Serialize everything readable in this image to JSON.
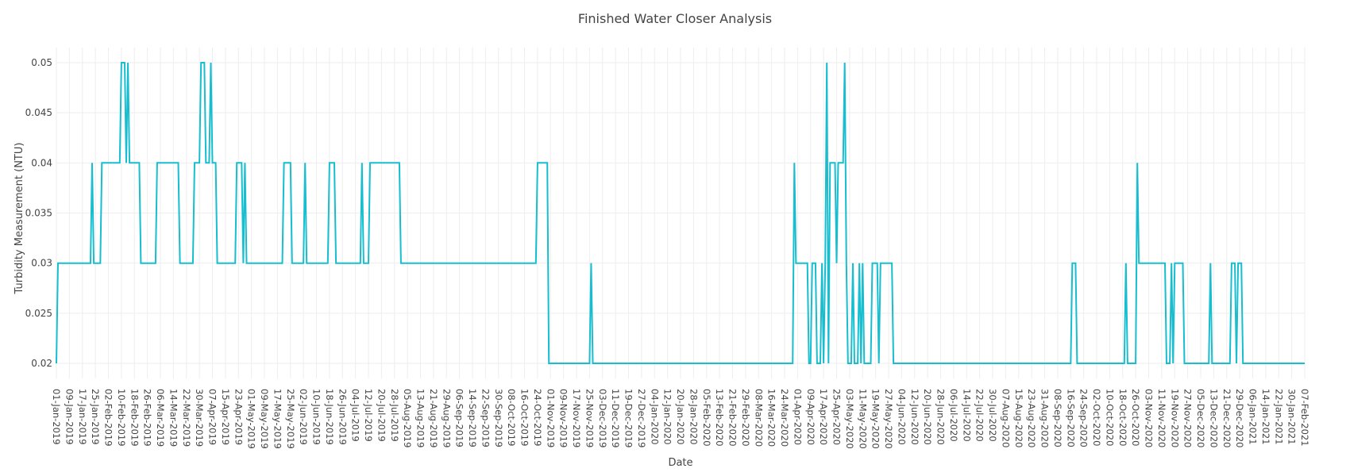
{
  "chart_data": {
    "type": "line",
    "title": "Finished Water Closer Analysis",
    "xlabel": "Date",
    "ylabel": "Turbidity Measurement (NTU)",
    "xlim": [
      "2019-01-01",
      "2021-02-07"
    ],
    "ylim": [
      0.0185,
      0.0515
    ],
    "yticks": [
      0.02,
      0.025,
      0.03,
      0.035,
      0.04,
      0.045,
      0.05
    ],
    "ytick_labels": [
      "0.02",
      "0.025",
      "0.03",
      "0.035",
      "0.04",
      "0.045",
      "0.05"
    ],
    "xtick_labels": [
      "01-Jan-2019",
      "09-Jan-2019",
      "17-Jan-2019",
      "25-Jan-2019",
      "02-Feb-2019",
      "10-Feb-2019",
      "18-Feb-2019",
      "26-Feb-2019",
      "06-Mar-2019",
      "14-Mar-2019",
      "22-Mar-2019",
      "30-Mar-2019",
      "07-Apr-2019",
      "15-Apr-2019",
      "23-Apr-2019",
      "01-May-2019",
      "09-May-2019",
      "17-May-2019",
      "25-May-2019",
      "02-Jun-2019",
      "10-Jun-2019",
      "18-Jun-2019",
      "26-Jun-2019",
      "04-Jul-2019",
      "12-Jul-2019",
      "20-Jul-2019",
      "28-Jul-2019",
      "05-Aug-2019",
      "13-Aug-2019",
      "21-Aug-2019",
      "29-Aug-2019",
      "06-Sep-2019",
      "14-Sep-2019",
      "22-Sep-2019",
      "30-Sep-2019",
      "08-Oct-2019",
      "16-Oct-2019",
      "24-Oct-2019",
      "01-Nov-2019",
      "09-Nov-2019",
      "17-Nov-2019",
      "25-Nov-2019",
      "03-Dec-2019",
      "11-Dec-2019",
      "19-Dec-2019",
      "27-Dec-2019",
      "04-Jan-2020",
      "12-Jan-2020",
      "20-Jan-2020",
      "28-Jan-2020",
      "05-Feb-2020",
      "13-Feb-2020",
      "21-Feb-2020",
      "29-Feb-2020",
      "08-Mar-2020",
      "16-Mar-2020",
      "24-Mar-2020",
      "01-Apr-2020",
      "09-Apr-2020",
      "17-Apr-2020",
      "25-Apr-2020",
      "03-May-2020",
      "11-May-2020",
      "19-May-2020",
      "27-May-2020",
      "04-Jun-2020",
      "12-Jun-2020",
      "20-Jun-2020",
      "28-Jun-2020",
      "06-Jul-2020",
      "14-Jul-2020",
      "22-Jul-2020",
      "30-Jul-2020",
      "07-Aug-2020",
      "15-Aug-2020",
      "23-Aug-2020",
      "31-Aug-2020",
      "08-Sep-2020",
      "16-Sep-2020",
      "24-Sep-2020",
      "02-Oct-2020",
      "10-Oct-2020",
      "18-Oct-2020",
      "26-Oct-2020",
      "03-Nov-2020",
      "11-Nov-2020",
      "19-Nov-2020",
      "27-Nov-2020",
      "05-Dec-2020",
      "13-Dec-2020",
      "21-Dec-2020",
      "29-Dec-2020",
      "06-Jan-2021",
      "14-Jan-2021",
      "22-Jan-2021",
      "30-Jan-2021",
      "07-Feb-2021"
    ],
    "grid": true,
    "legend": "none",
    "line_color": "#17becf",
    "series": [
      {
        "points": [
          [
            "2019-01-01",
            0.02
          ],
          [
            "2019-01-02",
            0.03
          ],
          [
            "2019-01-22",
            0.03
          ],
          [
            "2019-01-23",
            0.04
          ],
          [
            "2019-01-24",
            0.03
          ],
          [
            "2019-01-28",
            0.03
          ],
          [
            "2019-01-29",
            0.04
          ],
          [
            "2019-02-09",
            0.04
          ],
          [
            "2019-02-10",
            0.05
          ],
          [
            "2019-02-12",
            0.05
          ],
          [
            "2019-02-13",
            0.04
          ],
          [
            "2019-02-14",
            0.05
          ],
          [
            "2019-02-15",
            0.04
          ],
          [
            "2019-02-21",
            0.04
          ],
          [
            "2019-02-22",
            0.03
          ],
          [
            "2019-03-03",
            0.03
          ],
          [
            "2019-03-04",
            0.04
          ],
          [
            "2019-03-17",
            0.04
          ],
          [
            "2019-03-18",
            0.03
          ],
          [
            "2019-03-26",
            0.03
          ],
          [
            "2019-03-27",
            0.04
          ],
          [
            "2019-03-30",
            0.04
          ],
          [
            "2019-03-31",
            0.05
          ],
          [
            "2019-04-02",
            0.05
          ],
          [
            "2019-04-03",
            0.04
          ],
          [
            "2019-04-05",
            0.04
          ],
          [
            "2019-04-06",
            0.05
          ],
          [
            "2019-04-07",
            0.04
          ],
          [
            "2019-04-09",
            0.04
          ],
          [
            "2019-04-10",
            0.03
          ],
          [
            "2019-04-21",
            0.03
          ],
          [
            "2019-04-22",
            0.04
          ],
          [
            "2019-04-25",
            0.04
          ],
          [
            "2019-04-26",
            0.03
          ],
          [
            "2019-04-27",
            0.04
          ],
          [
            "2019-04-28",
            0.03
          ],
          [
            "2019-05-20",
            0.03
          ],
          [
            "2019-05-21",
            0.04
          ],
          [
            "2019-05-25",
            0.04
          ],
          [
            "2019-05-26",
            0.03
          ],
          [
            "2019-06-02",
            0.03
          ],
          [
            "2019-06-03",
            0.04
          ],
          [
            "2019-06-04",
            0.03
          ],
          [
            "2019-06-17",
            0.03
          ],
          [
            "2019-06-18",
            0.04
          ],
          [
            "2019-06-21",
            0.04
          ],
          [
            "2019-06-22",
            0.03
          ],
          [
            "2019-07-07",
            0.03
          ],
          [
            "2019-07-08",
            0.04
          ],
          [
            "2019-07-09",
            0.03
          ],
          [
            "2019-07-12",
            0.03
          ],
          [
            "2019-07-13",
            0.04
          ],
          [
            "2019-07-31",
            0.04
          ],
          [
            "2019-08-01",
            0.03
          ],
          [
            "2019-10-23",
            0.03
          ],
          [
            "2019-10-24",
            0.04
          ],
          [
            "2019-10-30",
            0.04
          ],
          [
            "2019-10-31",
            0.02
          ],
          [
            "2019-11-25",
            0.02
          ],
          [
            "2019-11-26",
            0.03
          ],
          [
            "2019-11-27",
            0.02
          ],
          [
            "2020-03-29",
            0.02
          ],
          [
            "2020-03-30",
            0.04
          ],
          [
            "2020-03-31",
            0.03
          ],
          [
            "2020-04-07",
            0.03
          ],
          [
            "2020-04-08",
            0.02
          ],
          [
            "2020-04-09",
            0.02
          ],
          [
            "2020-04-10",
            0.03
          ],
          [
            "2020-04-12",
            0.03
          ],
          [
            "2020-04-13",
            0.02
          ],
          [
            "2020-04-15",
            0.02
          ],
          [
            "2020-04-16",
            0.03
          ],
          [
            "2020-04-17",
            0.02
          ],
          [
            "2020-04-18",
            0.03
          ],
          [
            "2020-04-19",
            0.05
          ],
          [
            "2020-04-20",
            0.02
          ],
          [
            "2020-04-21",
            0.04
          ],
          [
            "2020-04-24",
            0.04
          ],
          [
            "2020-04-25",
            0.03
          ],
          [
            "2020-04-26",
            0.04
          ],
          [
            "2020-04-29",
            0.04
          ],
          [
            "2020-04-30",
            0.05
          ],
          [
            "2020-05-01",
            0.03
          ],
          [
            "2020-05-02",
            0.02
          ],
          [
            "2020-05-04",
            0.02
          ],
          [
            "2020-05-05",
            0.03
          ],
          [
            "2020-05-06",
            0.02
          ],
          [
            "2020-05-08",
            0.02
          ],
          [
            "2020-05-09",
            0.03
          ],
          [
            "2020-05-10",
            0.02
          ],
          [
            "2020-05-11",
            0.03
          ],
          [
            "2020-05-12",
            0.02
          ],
          [
            "2020-05-16",
            0.02
          ],
          [
            "2020-05-17",
            0.03
          ],
          [
            "2020-05-20",
            0.03
          ],
          [
            "2020-05-21",
            0.02
          ],
          [
            "2020-05-22",
            0.03
          ],
          [
            "2020-05-29",
            0.03
          ],
          [
            "2020-05-30",
            0.02
          ],
          [
            "2020-09-16",
            0.02
          ],
          [
            "2020-09-17",
            0.03
          ],
          [
            "2020-09-19",
            0.03
          ],
          [
            "2020-09-20",
            0.02
          ],
          [
            "2020-10-19",
            0.02
          ],
          [
            "2020-10-20",
            0.03
          ],
          [
            "2020-10-21",
            0.02
          ],
          [
            "2020-10-26",
            0.02
          ],
          [
            "2020-10-27",
            0.04
          ],
          [
            "2020-10-28",
            0.03
          ],
          [
            "2020-11-13",
            0.03
          ],
          [
            "2020-11-14",
            0.02
          ],
          [
            "2020-11-16",
            0.02
          ],
          [
            "2020-11-17",
            0.03
          ],
          [
            "2020-11-18",
            0.02
          ],
          [
            "2020-11-19",
            0.03
          ],
          [
            "2020-11-24",
            0.03
          ],
          [
            "2020-11-25",
            0.02
          ],
          [
            "2020-12-10",
            0.02
          ],
          [
            "2020-12-11",
            0.03
          ],
          [
            "2020-12-12",
            0.02
          ],
          [
            "2020-12-23",
            0.02
          ],
          [
            "2020-12-24",
            0.03
          ],
          [
            "2020-12-26",
            0.03
          ],
          [
            "2020-12-27",
            0.02
          ],
          [
            "2020-12-28",
            0.03
          ],
          [
            "2020-12-30",
            0.03
          ],
          [
            "2020-12-31",
            0.02
          ],
          [
            "2021-02-07",
            0.02
          ]
        ]
      }
    ]
  }
}
